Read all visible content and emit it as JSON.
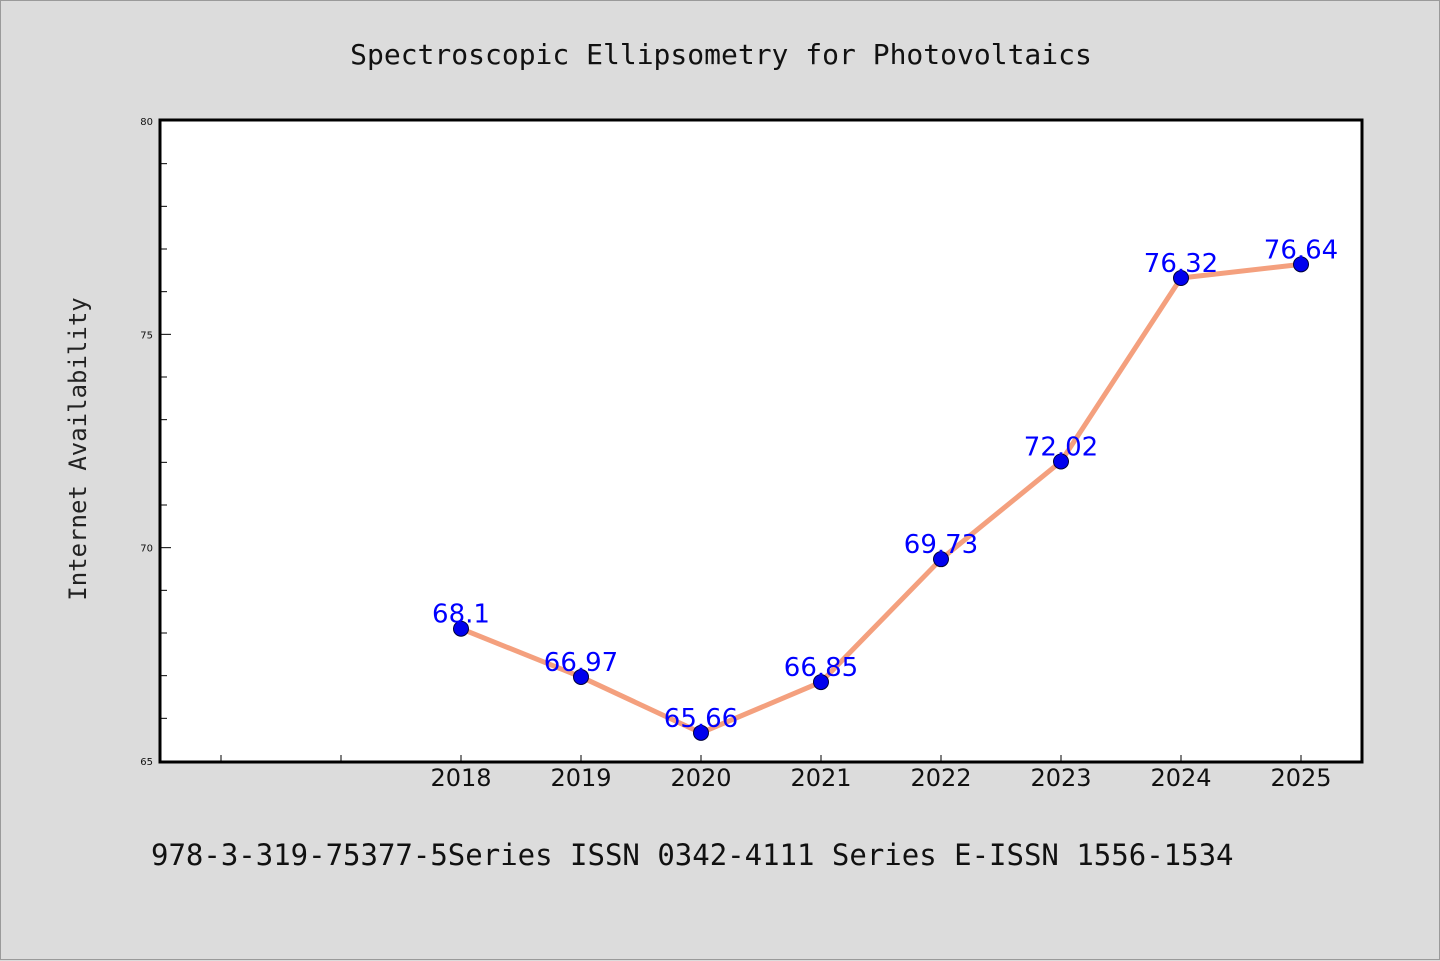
{
  "chart_data": {
    "type": "line",
    "title": "Spectroscopic Ellipsometry for Photovoltaics",
    "ylabel": "Internet Availability",
    "xlabel": "",
    "x": [
      "2018",
      "2019",
      "2020",
      "2021",
      "2022",
      "2023",
      "2024",
      "2025"
    ],
    "series": [
      {
        "values": [
          68.1,
          66.97,
          65.66,
          66.85,
          69.73,
          72.02,
          76.32,
          76.64
        ],
        "labels": [
          "68.1",
          "66.97",
          "65.66",
          "66.85",
          "69.73",
          "72.02",
          "76.32",
          "76.64"
        ]
      }
    ],
    "ylim": [
      65,
      80
    ],
    "yticks": [
      "65",
      "70",
      "75",
      "80"
    ],
    "grid": false,
    "line_color": "#f4a07e",
    "marker_color": "#0000ee",
    "label_color": "#0000ff"
  },
  "footer": {
    "text": "978-3-319-75377-5Series ISSN 0342-4111 Series E-ISSN 1556-1534"
  }
}
